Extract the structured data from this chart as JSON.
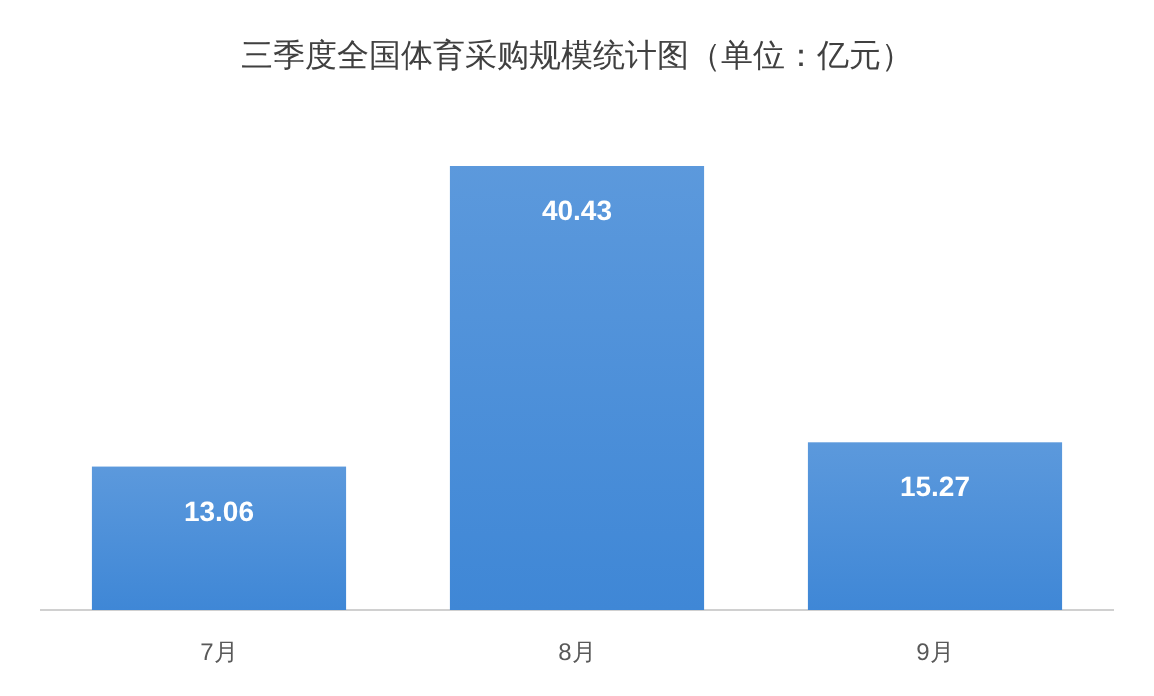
{
  "chart_data": {
    "type": "bar",
    "title": "三季度全国体育采购规模统计图（单位：亿元）",
    "categories": [
      "7月",
      "8月",
      "9月"
    ],
    "values": [
      13.06,
      40.43,
      15.27
    ],
    "color": "#3f87d6",
    "data_labels": true
  }
}
